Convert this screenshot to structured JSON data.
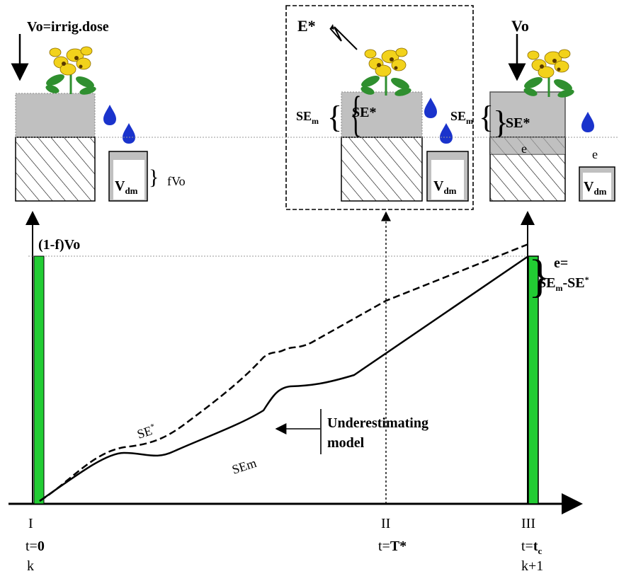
{
  "figure": {
    "pot_labels": {
      "irrig_dose": "Vo=irrig.dose",
      "vo": "Vo",
      "e_star": "E*",
      "se_star": "SE*",
      "se_m_base": "SE",
      "se_m_sub": "m",
      "v_base": "V",
      "v_sub": "dm",
      "fvo": "fVo",
      "e_small": "e"
    },
    "graph_labels": {
      "one_minus_f_vo": "(1-f)Vo",
      "e_eq": "e=",
      "e_formula_a": "SE",
      "e_formula_a_sub": "m",
      "e_formula_b": "-SE",
      "e_formula_b_sup": "*",
      "curve_se_star_base": "SE",
      "curve_se_star_sup": "*",
      "curve_sem": "SEm",
      "underestimating_line1": "Underestimating",
      "underestimating_line2": "model"
    },
    "time_points": [
      {
        "roman": "I",
        "t_prefix": "t=",
        "t_value": "0",
        "t_value_sub": "",
        "step": "k"
      },
      {
        "roman": "II",
        "t_prefix": "t=",
        "t_value": "T*",
        "t_value_sub": "",
        "step": ""
      },
      {
        "roman": "III",
        "t_prefix": "t=",
        "t_value": "t",
        "t_value_sub": "c",
        "step": "k+1"
      }
    ],
    "colors": {
      "soil_gray": "#c0c0c0",
      "water_blue": "#1a33cc",
      "bar_green": "#22cc33",
      "flower_yellow": "#f2d21b",
      "leaf_green": "#2f8f2f"
    }
  }
}
